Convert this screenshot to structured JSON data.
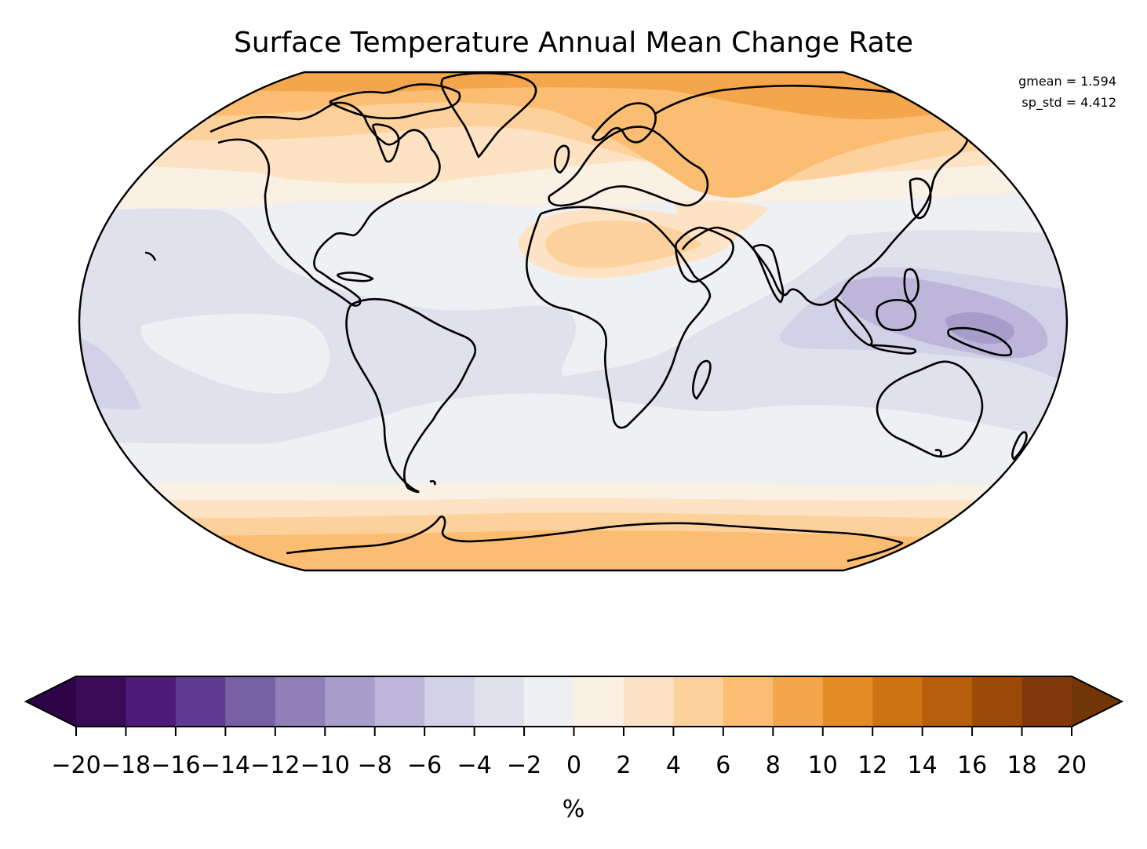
{
  "title": "Surface Temperature Annual Mean Change Rate",
  "stats": {
    "gmean": "gmean = 1.594",
    "sp_std": "sp_std = 4.412"
  },
  "colorbar": {
    "label": "%",
    "ticks": [
      "−20",
      "−18",
      "−16",
      "−14",
      "−12",
      "−10",
      "−8",
      "−6",
      "−4",
      "−2",
      "0",
      "2",
      "4",
      "6",
      "8",
      "10",
      "12",
      "14",
      "16",
      "18",
      "20"
    ],
    "levels": [
      -20,
      -18,
      -16,
      -14,
      -12,
      -10,
      -8,
      -6,
      -4,
      -2,
      0,
      2,
      4,
      6,
      8,
      10,
      12,
      14,
      16,
      18,
      20
    ],
    "colors": [
      "#3a0b56",
      "#4e1c78",
      "#613a91",
      "#7760a3",
      "#8f80b7",
      "#a69dca",
      "#bdb6da",
      "#d3d1e7",
      "#e1e1ee",
      "#eff0f3",
      "#faf0e4",
      "#fde3c3",
      "#fdd19b",
      "#fbbd72",
      "#f3a64c",
      "#e38b24",
      "#cd7314",
      "#b65e0c",
      "#9c4a08",
      "#81390b"
    ],
    "extend_low_color": "#2d0445",
    "extend_high_color": "#713506"
  },
  "map_colors": {
    "ocean_background": "#eff0f3",
    "neg2_to_neg4": "#e1e1ee",
    "neg4_to_neg6": "#d3d1e7",
    "neg6_to_neg8": "#bdb6da",
    "neg8_to_neg10": "#a69dca",
    "zero_to_2": "#faf0e4",
    "two_to_4": "#fde3c3",
    "four_to_6": "#fdd19b",
    "six_to_8": "#fbbd72",
    "eight_to_10": "#f3a64c"
  }
}
